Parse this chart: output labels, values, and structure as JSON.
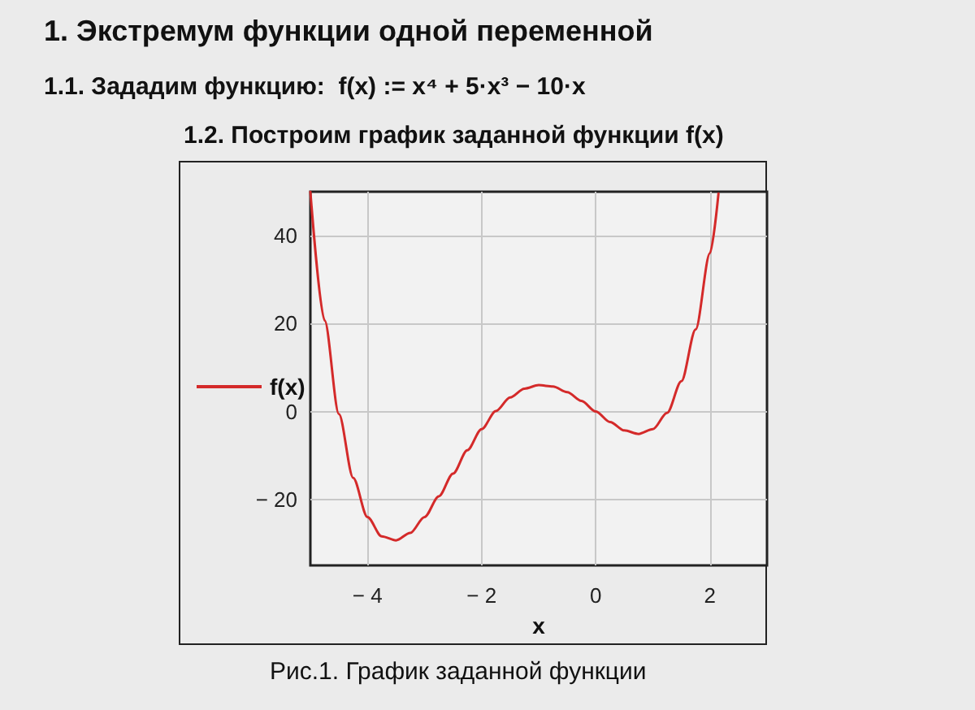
{
  "chart_data": {
    "type": "line",
    "title": "1. Экстремум функции одной переменной",
    "subtitle": "1.1. Зададим функцию:  f(x) := x⁴ + 5·x³ − 10·x",
    "annotations": [
      "1.2. Построим график заданной функции f(x)",
      "Рис.1. График заданной функции"
    ],
    "xlabel": "x",
    "x": [
      -5,
      -4.75,
      -4.5,
      -4.25,
      -4,
      -3.75,
      -3.5,
      -3.25,
      -3,
      -2.75,
      -2.5,
      -2.25,
      -2,
      -1.75,
      -1.5,
      -1.25,
      -1,
      -0.75,
      -0.5,
      -0.25,
      0,
      0.25,
      0.5,
      0.75,
      1,
      1.25,
      1.5,
      1.75,
      2,
      2.15
    ],
    "series": [
      {
        "name": "f(x)",
        "color": "#d42a2a",
        "values": [
          50,
          20.7,
          -0.6,
          -15.1,
          -24,
          -28.4,
          -29.3,
          -27.6,
          -24,
          -19.3,
          -14.1,
          -8.8,
          -4,
          0.1,
          3.2,
          5.2,
          6,
          5.7,
          4.4,
          2.4,
          0,
          -2.4,
          -4.3,
          -5.1,
          -4,
          -0.3,
          6.9,
          18.7,
          36,
          49.6
        ]
      }
    ],
    "xlim": [
      -5,
      3
    ],
    "xticks": [
      -4,
      -2,
      0,
      2
    ],
    "ylim": [
      -35,
      50
    ],
    "yticks": [
      -20,
      0,
      20,
      40
    ],
    "grid": true,
    "legend": "left",
    "marker": "none",
    "line_style": "solid"
  }
}
